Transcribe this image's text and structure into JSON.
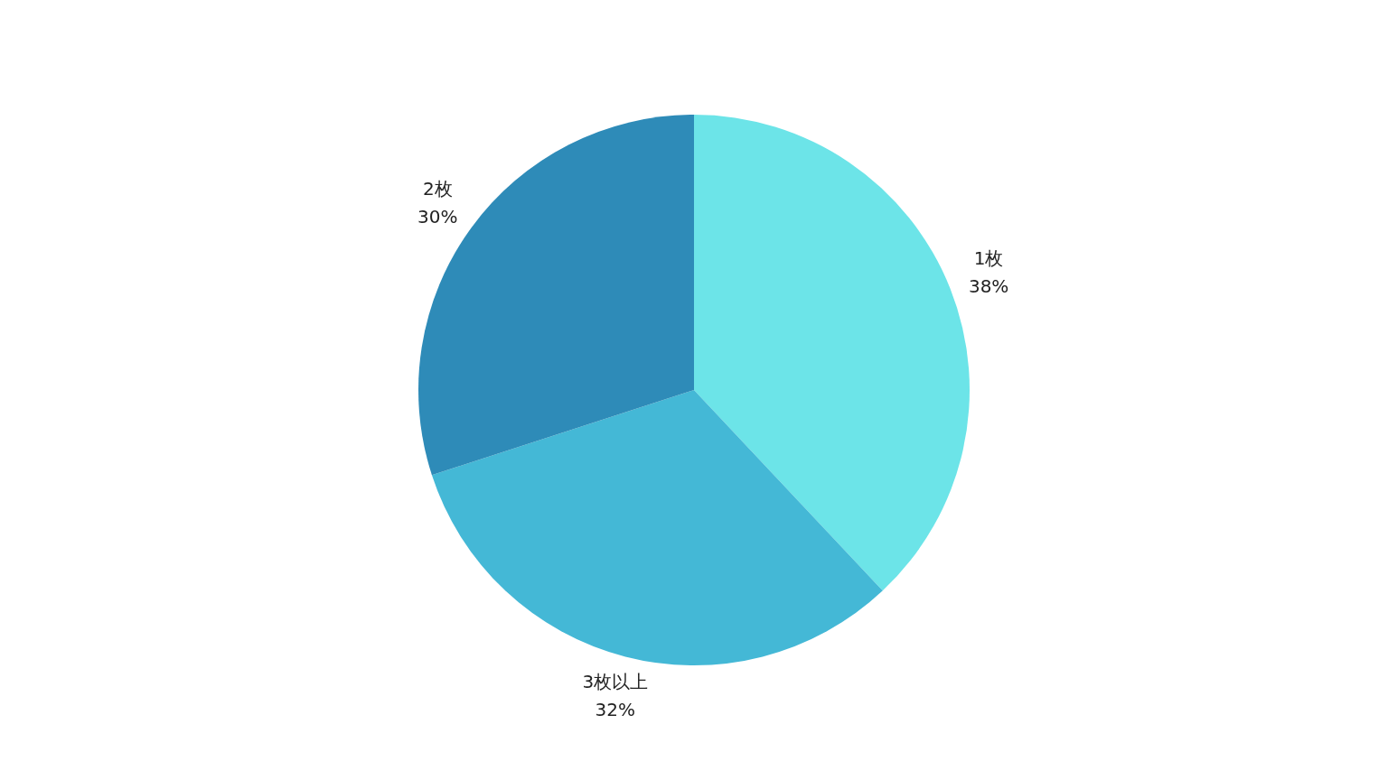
{
  "chart_data": {
    "type": "pie",
    "categories": [
      "1枚",
      "3枚以上",
      "2枚"
    ],
    "values": [
      38,
      32,
      30
    ],
    "colors": [
      "#6ce4e8",
      "#44b8d6",
      "#2e8bb8"
    ],
    "value_labels": [
      "38%",
      "32%",
      "30%"
    ],
    "legend": false
  }
}
